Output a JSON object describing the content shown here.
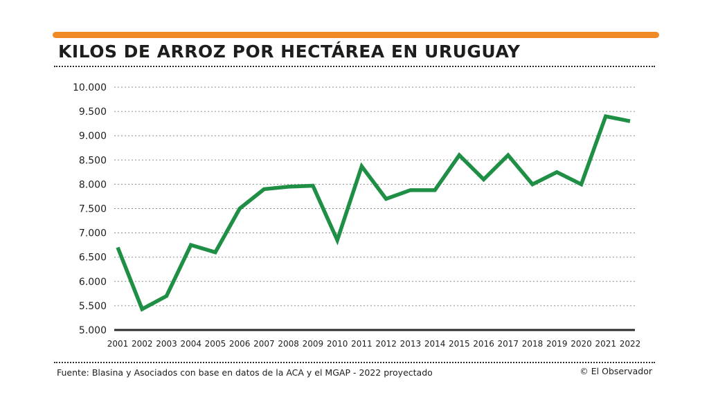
{
  "colors": {
    "accent": "#f08a24",
    "line": "#1e8f45",
    "text": "#1d1d1b"
  },
  "header": {
    "title": "KILOS DE ARROZ POR HECTÁREA EN URUGUAY"
  },
  "footer": {
    "source": "Fuente: Blasina y Asociados con base en datos de la ACA y el MGAP - 2022 proyectado",
    "credit": "© El Observador"
  },
  "chart_data": {
    "type": "line",
    "title": "KILOS DE ARROZ POR HECTÁREA EN URUGUAY",
    "xlabel": "",
    "ylabel": "",
    "ylim": [
      5000,
      10000
    ],
    "yticks": [
      5000,
      5500,
      6000,
      6500,
      7000,
      7500,
      8000,
      8500,
      9000,
      9500,
      10000
    ],
    "ytick_labels": [
      "5.000",
      "5.500",
      "6.000",
      "6.500",
      "7.000",
      "7.500",
      "8.000",
      "8.500",
      "9.000",
      "9.500",
      "10.000"
    ],
    "grid": "horizontal dotted",
    "legend": "none",
    "x": [
      "2001",
      "2002",
      "2003",
      "2004",
      "2005",
      "2006",
      "2007",
      "2008",
      "2009",
      "2010",
      "2011",
      "2012",
      "2013",
      "2014",
      "2015",
      "2016",
      "2017",
      "2018",
      "2019",
      "2020",
      "2021",
      "2022"
    ],
    "series": [
      {
        "values": [
          6700,
          5430,
          5700,
          6750,
          6600,
          7500,
          7900,
          7950,
          7970,
          6850,
          8370,
          7700,
          7880,
          7880,
          8600,
          8100,
          8600,
          8000,
          8250,
          8000,
          9400,
          9300
        ]
      }
    ]
  }
}
